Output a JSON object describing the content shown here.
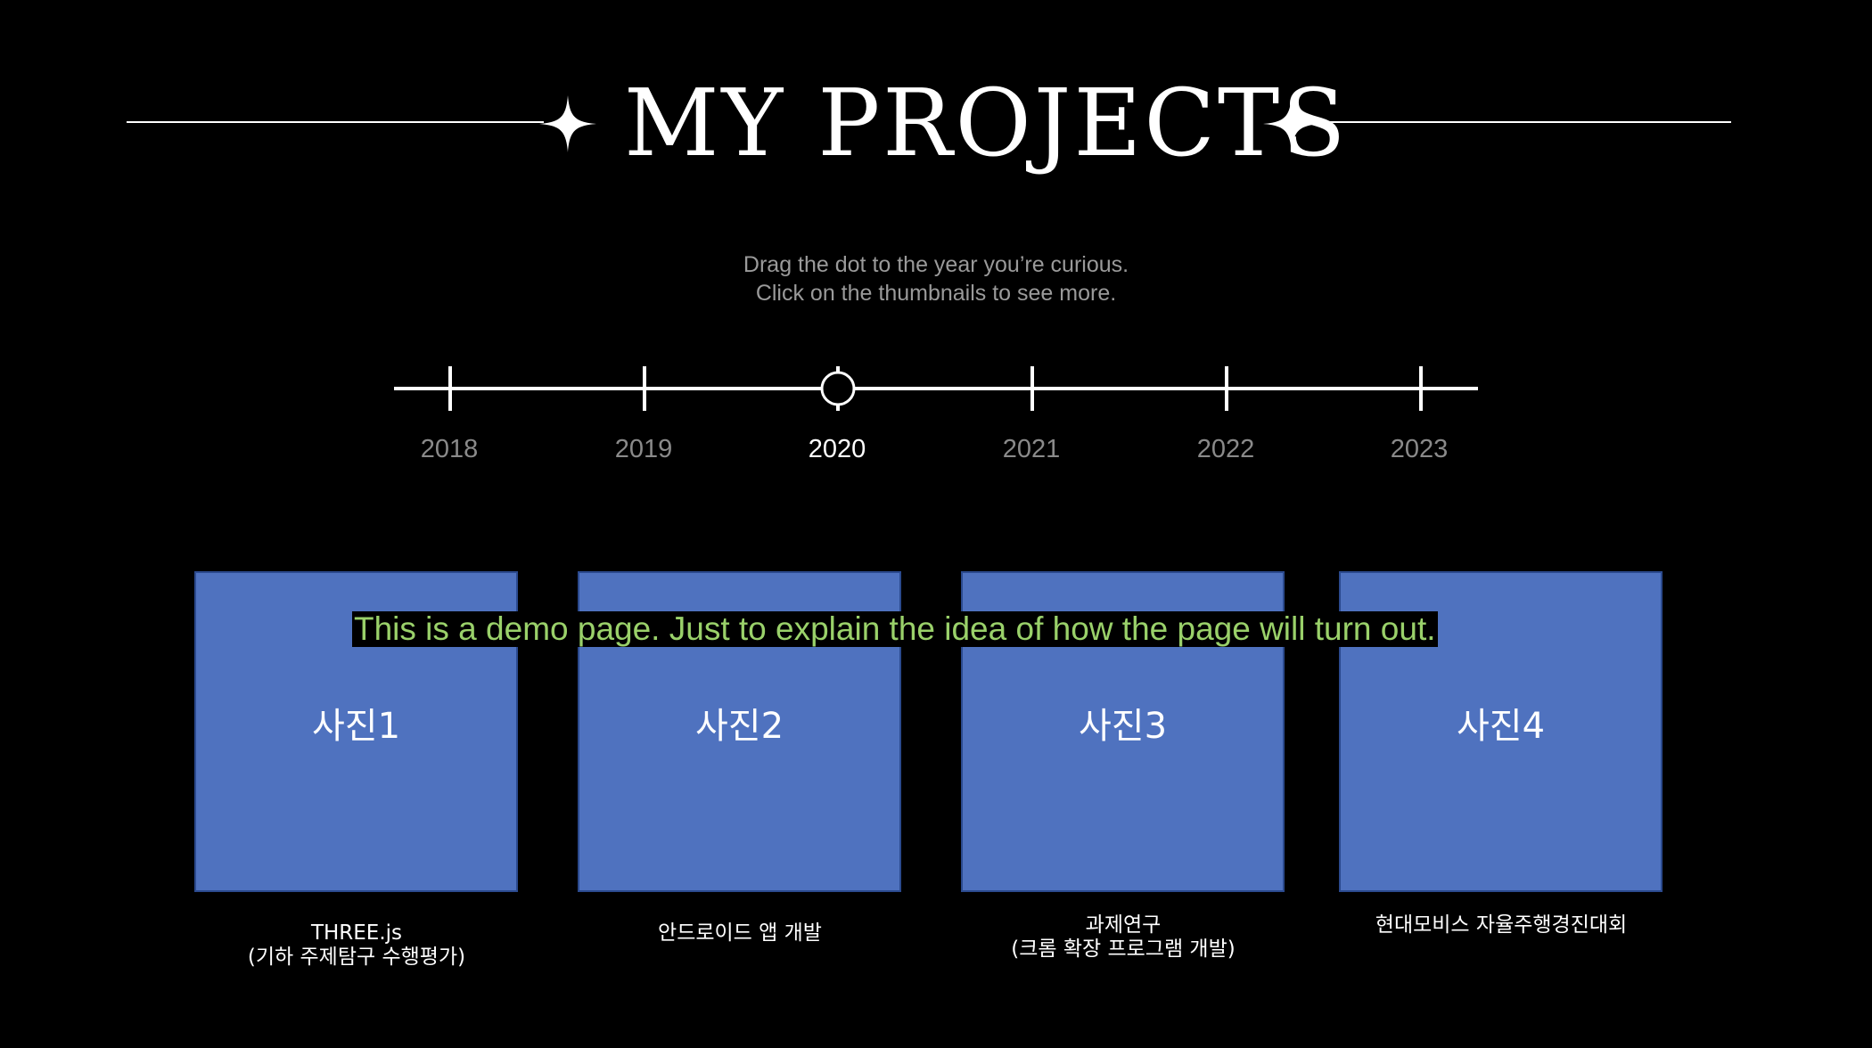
{
  "header": {
    "title": "MY PROJECTS"
  },
  "instructions": {
    "line1": "Drag the dot to the year you’re curious.",
    "line2": "Click on the thumbnails to see more."
  },
  "timeline": {
    "years": [
      "2018",
      "2019",
      "2020",
      "2021",
      "2022",
      "2023"
    ],
    "selected": "2020"
  },
  "projects": [
    {
      "thumb_label": "사진1",
      "caption_line1": "THREE.js",
      "caption_line2": "(기하 주제탐구 수행평가)"
    },
    {
      "thumb_label": "사진2",
      "caption_line1": "안드로이드 앱 개발",
      "caption_line2": ""
    },
    {
      "thumb_label": "사진3",
      "caption_line1": "과제연구",
      "caption_line2": "(크롬 확장 프로그램 개발)"
    },
    {
      "thumb_label": "사진4",
      "caption_line1": "현대모비스 자율주행경진대회",
      "caption_line2": ""
    }
  ],
  "demo_notice": "This is a demo page. Just to explain the idea of how the page will turn out.",
  "colors": {
    "background": "#000000",
    "thumbnail": "#4f72bf",
    "demo_text": "#9ad16a",
    "muted_text": "#9a9a9a"
  }
}
